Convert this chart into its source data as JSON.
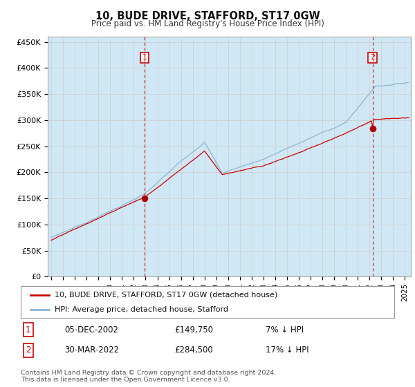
{
  "title": "10, BUDE DRIVE, STAFFORD, ST17 0GW",
  "subtitle": "Price paid vs. HM Land Registry's House Price Index (HPI)",
  "ylabel_ticks": [
    "£0",
    "£50K",
    "£100K",
    "£150K",
    "£200K",
    "£250K",
    "£300K",
    "£350K",
    "£400K",
    "£450K"
  ],
  "ytick_values": [
    0,
    50000,
    100000,
    150000,
    200000,
    250000,
    300000,
    350000,
    400000,
    450000
  ],
  "ylim": [
    0,
    460000
  ],
  "xlim_start": 1994.7,
  "xlim_end": 2025.5,
  "hpi_color": "#8ab4d4",
  "hpi_fill_color": "#d0e8f5",
  "price_color": "#cc0000",
  "vline_color": "#cc0000",
  "marker1_date": 2002.92,
  "marker1_price": 149750,
  "marker2_date": 2022.25,
  "marker2_price": 284500,
  "legend_label1": "10, BUDE DRIVE, STAFFORD, ST17 0GW (detached house)",
  "legend_label2": "HPI: Average price, detached house, Stafford",
  "table_row1": [
    "1",
    "05-DEC-2002",
    "£149,750",
    "7% ↓ HPI"
  ],
  "table_row2": [
    "2",
    "30-MAR-2022",
    "£284,500",
    "17% ↓ HPI"
  ],
  "footnote": "Contains HM Land Registry data © Crown copyright and database right 2024.\nThis data is licensed under the Open Government Licence v3.0.",
  "bg_color": "#ffffff",
  "grid_color": "#cccccc"
}
